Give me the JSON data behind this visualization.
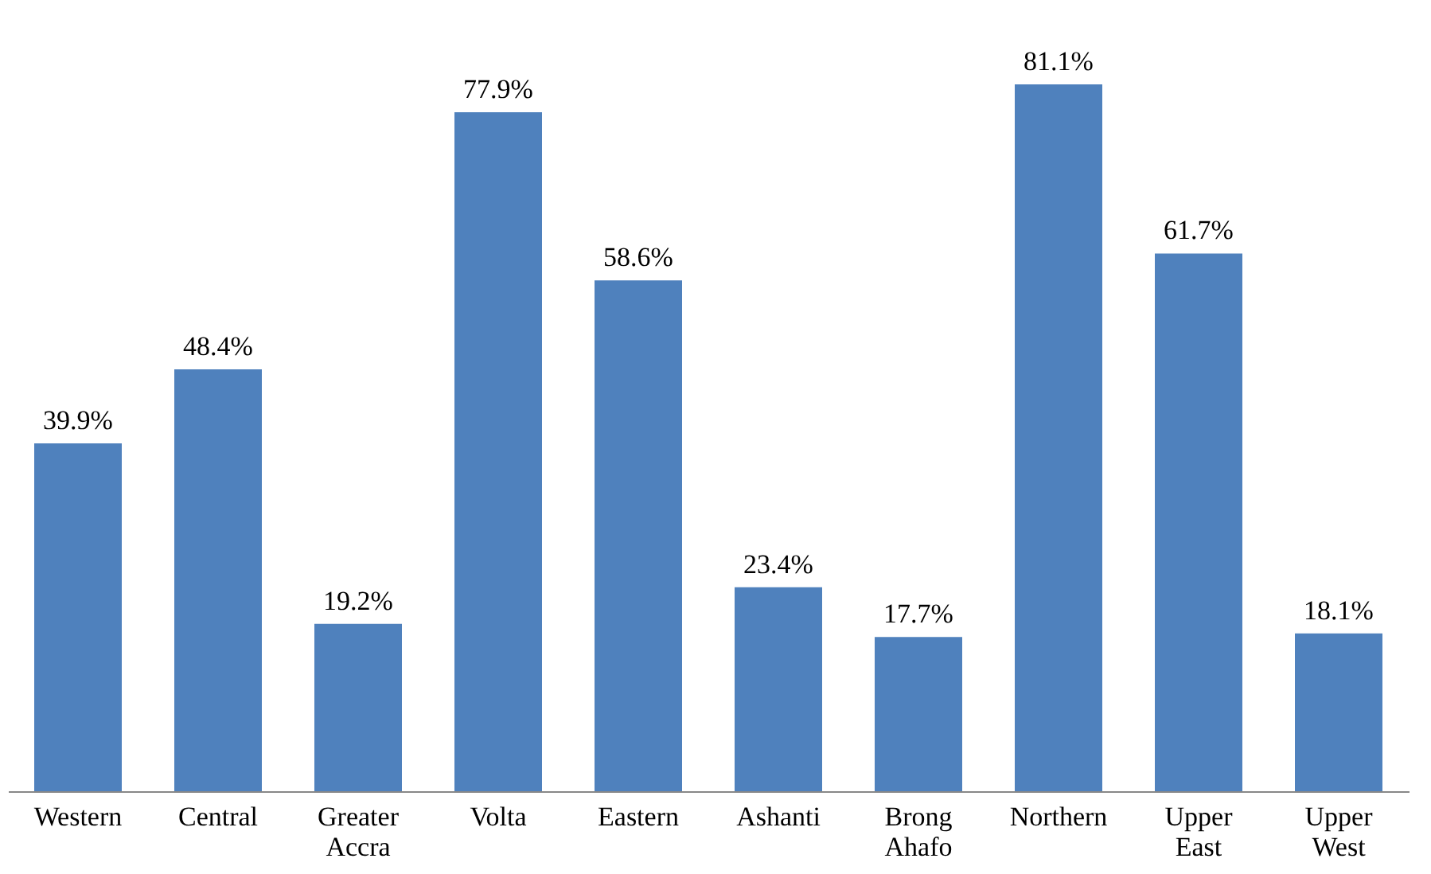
{
  "chart_data": {
    "type": "bar",
    "categories": [
      "Western",
      "Central",
      "Greater Accra",
      "Volta",
      "Eastern",
      "Ashanti",
      "Brong Ahafo",
      "Northern",
      "Upper East",
      "Upper West"
    ],
    "values": [
      39.9,
      48.4,
      19.2,
      77.9,
      58.6,
      23.4,
      17.7,
      81.1,
      61.7,
      18.1
    ],
    "value_labels": [
      "39.9%",
      "48.4%",
      "19.2%",
      "77.9%",
      "58.6%",
      "23.4%",
      "17.7%",
      "81.1%",
      "61.7%",
      "18.1%"
    ],
    "color": "#4f81bd",
    "grid": false,
    "tick_labels": "x"
  }
}
